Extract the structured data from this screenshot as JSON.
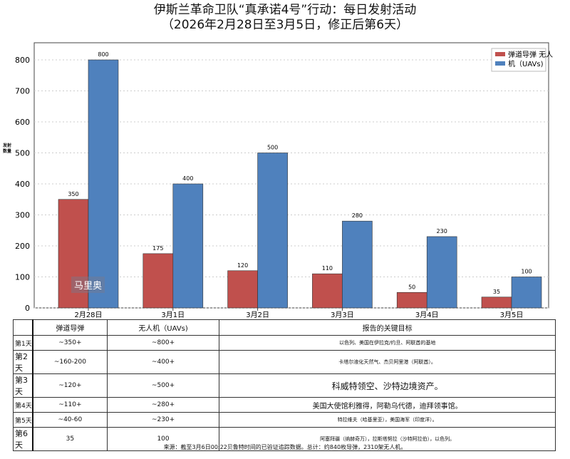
{
  "title": "伊斯兰革命卫队“真承诺4号”行动：每日发射活动",
  "subtitle": "（2026年2月28日至3月5日，修正后第6天）",
  "watermark": "马里奥",
  "chart_data": {
    "type": "bar",
    "categories": [
      "2月28日",
      "3月1日",
      "3月2日",
      "3月3日",
      "3月4日",
      "3月5日"
    ],
    "series": [
      {
        "name": "弹道导弹",
        "values": [
          350,
          175,
          120,
          110,
          50,
          35
        ],
        "color": "#c0504d"
      },
      {
        "name": "无人机（UAVs)",
        "values": [
          800,
          400,
          500,
          280,
          230,
          100
        ],
        "color": "#4f81bd"
      }
    ],
    "legend_labels": [
      "弹道导弹 无人",
      "机（UAVs)"
    ],
    "ylabel": "发射数量",
    "ylim": [
      0,
      800
    ],
    "yticks": [
      0,
      100,
      200,
      300,
      400,
      500,
      600,
      700,
      800
    ],
    "grid": true,
    "legend": "top-right"
  },
  "table": {
    "headers": [
      "弹道导弹",
      "无人机（UAVs)",
      "报告的关键目标"
    ],
    "rows": [
      {
        "day": "第1天",
        "missiles": "~350+",
        "uavs": "~800+",
        "targets": "以色列、美国在伊拉克/约旦、阿联酋的基地",
        "size": "small"
      },
      {
        "day": "第2天",
        "missiles": "~160-200",
        "uavs": "~400+",
        "targets": "卡塔尔液化天然气、杰贝阿里港（阿联酋）。",
        "size": "small"
      },
      {
        "day": "第3天",
        "missiles": "~120+",
        "uavs": "~500+",
        "targets": "科威特领空、沙特边境资产。",
        "size": "big"
      },
      {
        "day": "第4天",
        "missiles": "~110+",
        "uavs": "~280+",
        "targets": "美国大使馆利雅得，阿勒乌代德，迪拜领事馆。",
        "size": "mid"
      },
      {
        "day": "第5天",
        "missiles": "~40-60",
        "uavs": "~230+",
        "targets": "特拉维夫（哈基里亚），美国海军（印度洋）。",
        "size": "small"
      },
      {
        "day": "第6天",
        "missiles": "35",
        "uavs": "100",
        "targets": "阿塞拜疆（纳赫奇万），拉斯塔努拉（沙特阿拉伯），以色列。",
        "size": "small"
      }
    ]
  },
  "source": "来源：截至3月6日00:22贝鲁特时间的已验证追踪数据。总计：约840枚导弹，2310架无人机。"
}
